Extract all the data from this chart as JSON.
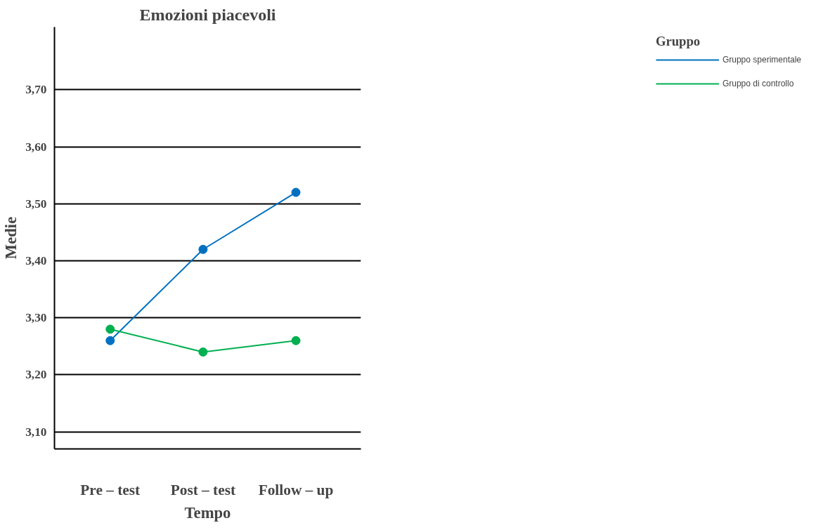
{
  "chart_data": {
    "type": "line",
    "title": "Emozioni piacevoli",
    "xlabel": "Tempo",
    "ylabel": "Medie",
    "legend_title": "Gruppo",
    "categories": [
      "Pre – test",
      "Post – test",
      "Follow – up"
    ],
    "series": [
      {
        "name": "Gruppo sperimentale",
        "color": "#0070c0",
        "values": [
          3.26,
          3.42,
          3.52
        ]
      },
      {
        "name": "Gruppo di controllo",
        "color": "#00b050",
        "values": [
          3.28,
          3.24,
          3.26
        ]
      }
    ],
    "ylim": [
      3.07,
      3.81
    ],
    "yticks": [
      {
        "value": 3.1,
        "label": "3,10"
      },
      {
        "value": 3.2,
        "label": "3,20"
      },
      {
        "value": 3.3,
        "label": "3,30"
      },
      {
        "value": 3.4,
        "label": "3,40"
      },
      {
        "value": 3.5,
        "label": "3,50"
      },
      {
        "value": 3.6,
        "label": "3,60"
      },
      {
        "value": 3.7,
        "label": "3,70"
      }
    ],
    "grid": "y",
    "legend": "top right",
    "marker": "circle",
    "line_style": "solid"
  }
}
